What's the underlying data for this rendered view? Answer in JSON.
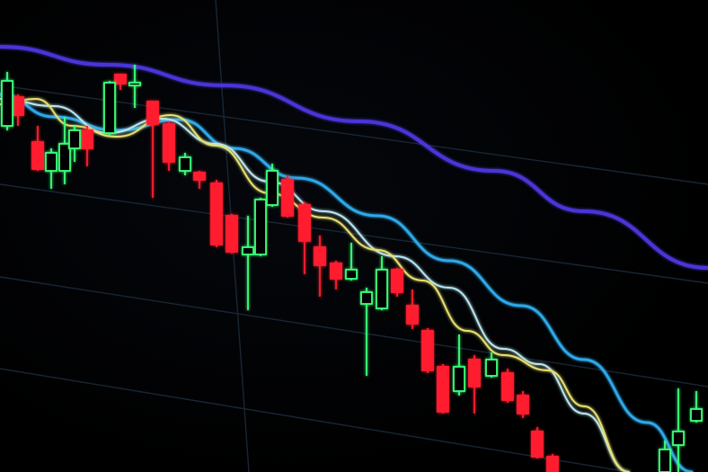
{
  "photo": {
    "subject": "candlestick-chart-screen",
    "colors": {
      "background": "#000000",
      "bearish_candle": "#ff1f2d",
      "bullish_candle": "#3dff7a",
      "grid": "#1b2a3a",
      "ma_long": "#4a36d8",
      "ma_mid": "#2fa8e8",
      "ma_short_light": "#b8e6f0",
      "ma_short_yellow": "#e6e070"
    }
  }
}
